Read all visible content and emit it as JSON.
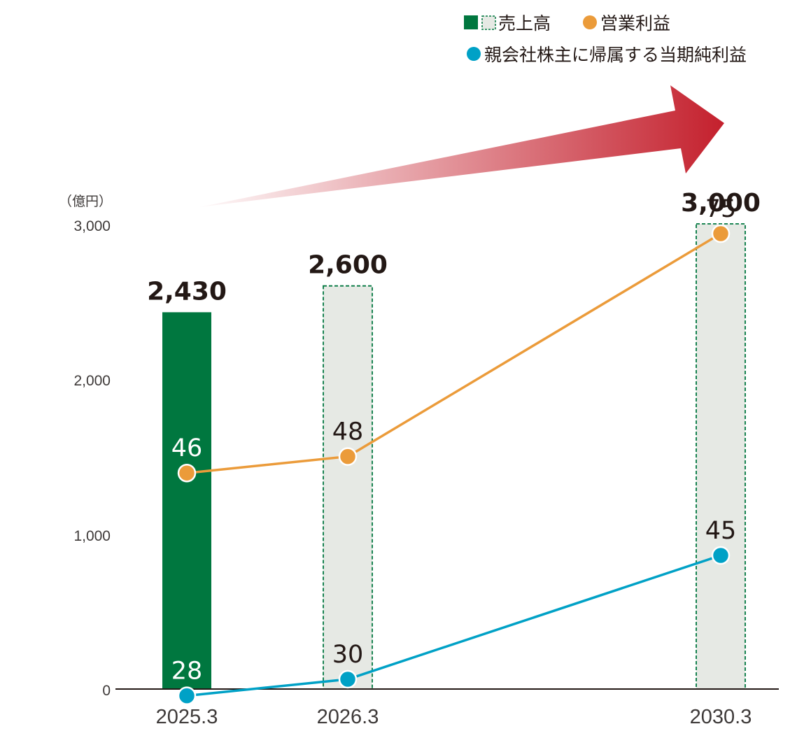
{
  "chart_data": {
    "type": "bar",
    "unit": "（億円）",
    "categories": [
      "2025.3",
      "2026.3",
      "2030.3"
    ],
    "ylim": [
      0,
      3000
    ],
    "yticks": [
      "0",
      "1,000",
      "2,000",
      "3,000"
    ],
    "legend": {
      "sales": "売上高",
      "operating_profit": "営業利益",
      "net_profit": "親会社株主に帰属する当期純利益"
    },
    "series": [
      {
        "name": "売上高",
        "kind": "bar",
        "values": [
          2430,
          2600,
          3000
        ],
        "labels": [
          "2,430",
          "2,600",
          "3,000"
        ],
        "styles": [
          "actual",
          "target",
          "target"
        ]
      },
      {
        "name": "営業利益",
        "kind": "line",
        "values": [
          46,
          48,
          75
        ],
        "labels": [
          "46",
          "48",
          "75"
        ]
      },
      {
        "name": "親会社株主に帰属する当期純利益",
        "kind": "line",
        "values": [
          28,
          30,
          45
        ],
        "labels": [
          "28",
          "30",
          "45"
        ]
      }
    ],
    "colors": {
      "actual_bar": "#00773f",
      "target_bar_fill": "#e6e9e4",
      "target_bar_stroke": "#00773f",
      "operating_profit": "#eb9b3a",
      "net_profit": "#00a1c6",
      "arrow": "#c4202d",
      "axis": "#231815"
    },
    "legend_placement": "top-right",
    "grid": false
  }
}
